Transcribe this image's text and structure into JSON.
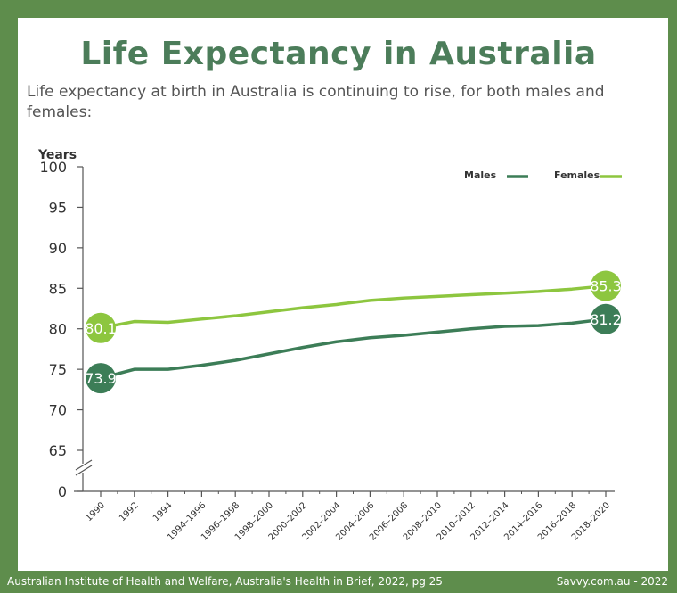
{
  "header": {
    "title": "Life Expectancy in Australia",
    "subtitle": "Life expectancy at birth in Australia is continuing to rise, for both males and females:"
  },
  "footer": {
    "source": "Australian Institute of Health and Welfare, Australia's Health in Brief, 2022, pg 25",
    "credit": "Savvy.com.au - 2022"
  },
  "colors": {
    "frame": "#5e8d4c",
    "title": "#4c7d5a",
    "males": "#3c7d57",
    "females": "#8dc63f"
  },
  "chart_data": {
    "type": "line",
    "title": "",
    "ylabel": "Years",
    "xlabel": "",
    "ylim": [
      65,
      100
    ],
    "y_axis_break": true,
    "yticks": [
      0,
      65,
      70,
      75,
      80,
      85,
      90,
      95,
      100
    ],
    "grid": false,
    "legend": "top-right",
    "categories": [
      "1990",
      "1992",
      "1994",
      "1994–1996",
      "1996–1998",
      "1998–2000",
      "2000–2002",
      "2002–2004",
      "2004–2006",
      "2006–2008",
      "2008–2010",
      "2010–2012",
      "2012–2014",
      "2014–2016",
      "2016–2018",
      "2018–2020"
    ],
    "series": [
      {
        "name": "Males",
        "color": "#3c7d57",
        "values": [
          73.9,
          75.0,
          75.0,
          75.5,
          76.1,
          76.9,
          77.7,
          78.4,
          78.9,
          79.2,
          79.6,
          80.0,
          80.3,
          80.4,
          80.7,
          81.2
        ],
        "labeled_points": {
          "first": "73.9",
          "last": "81.2"
        }
      },
      {
        "name": "Females",
        "color": "#8dc63f",
        "values": [
          80.1,
          80.9,
          80.8,
          81.2,
          81.6,
          82.1,
          82.6,
          83.0,
          83.5,
          83.8,
          84.0,
          84.2,
          84.4,
          84.6,
          84.9,
          85.3
        ],
        "labeled_points": {
          "first": "80.1",
          "last": "85.3"
        }
      }
    ]
  }
}
